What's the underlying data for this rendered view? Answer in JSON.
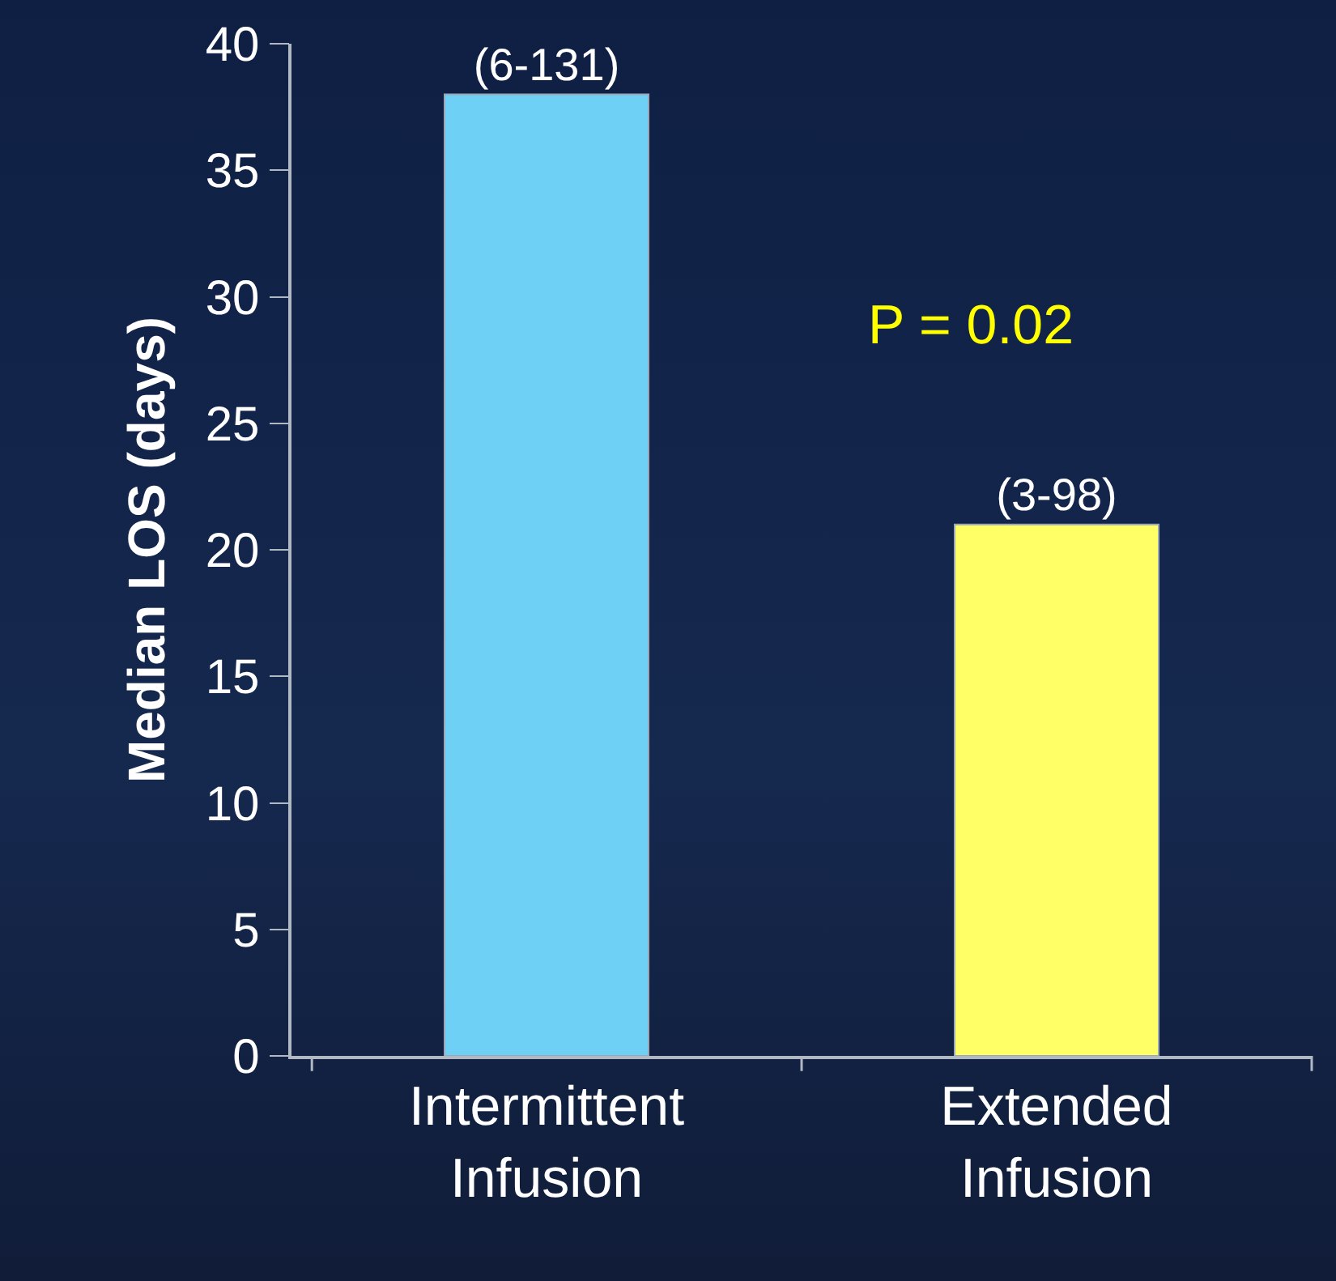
{
  "chart_data": {
    "type": "bar",
    "ylabel": "Median LOS (days)",
    "categories": [
      "Intermittent Infusion",
      "Extended Infusion"
    ],
    "values": [
      38,
      21
    ],
    "colors": [
      "#6fd0f6",
      "#ffff66"
    ],
    "value_labels": [
      "(6-131)",
      "(3-98)"
    ],
    "annotations": [
      "P = 0.02"
    ],
    "ylim": [
      0,
      40
    ],
    "yticks": [
      0,
      5,
      10,
      15,
      20,
      25,
      30,
      35,
      40
    ],
    "grid": false
  }
}
